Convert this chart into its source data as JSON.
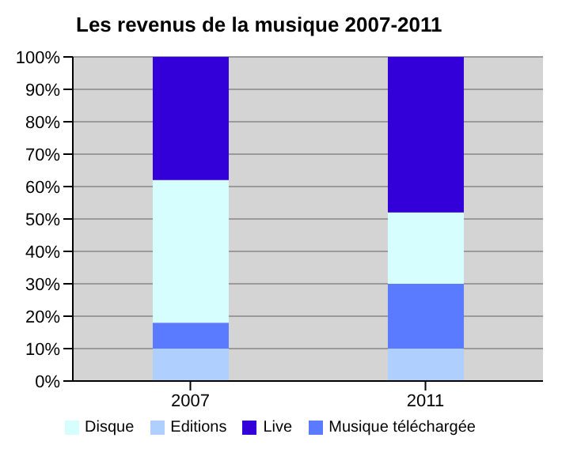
{
  "chart_data": {
    "type": "bar",
    "title": "Les revenus de la musique 2007-2011",
    "categories": [
      "2007",
      "2011"
    ],
    "stacked": true,
    "series": [
      {
        "name": "Editions",
        "color": "#aecfff",
        "values": [
          10,
          10
        ]
      },
      {
        "name": "Musique téléchargée",
        "color": "#5a7bff",
        "values": [
          8,
          20
        ]
      },
      {
        "name": "Disque",
        "color": "#d6fefe",
        "values": [
          44,
          22
        ]
      },
      {
        "name": "Live",
        "color": "#3300d9",
        "values": [
          38,
          48
        ]
      }
    ],
    "ylim": [
      0,
      100
    ],
    "yticks": [
      {
        "value": 0,
        "label": "0%"
      },
      {
        "value": 10,
        "label": "10%"
      },
      {
        "value": 20,
        "label": "20%"
      },
      {
        "value": 30,
        "label": "30%"
      },
      {
        "value": 40,
        "label": "40%"
      },
      {
        "value": 50,
        "label": "50%"
      },
      {
        "value": 60,
        "label": "60%"
      },
      {
        "value": 70,
        "label": "70%"
      },
      {
        "value": 80,
        "label": "80%"
      },
      {
        "value": 90,
        "label": "90%"
      },
      {
        "value": 100,
        "label": "100%"
      }
    ],
    "grid": "y",
    "legend": "bottom"
  }
}
